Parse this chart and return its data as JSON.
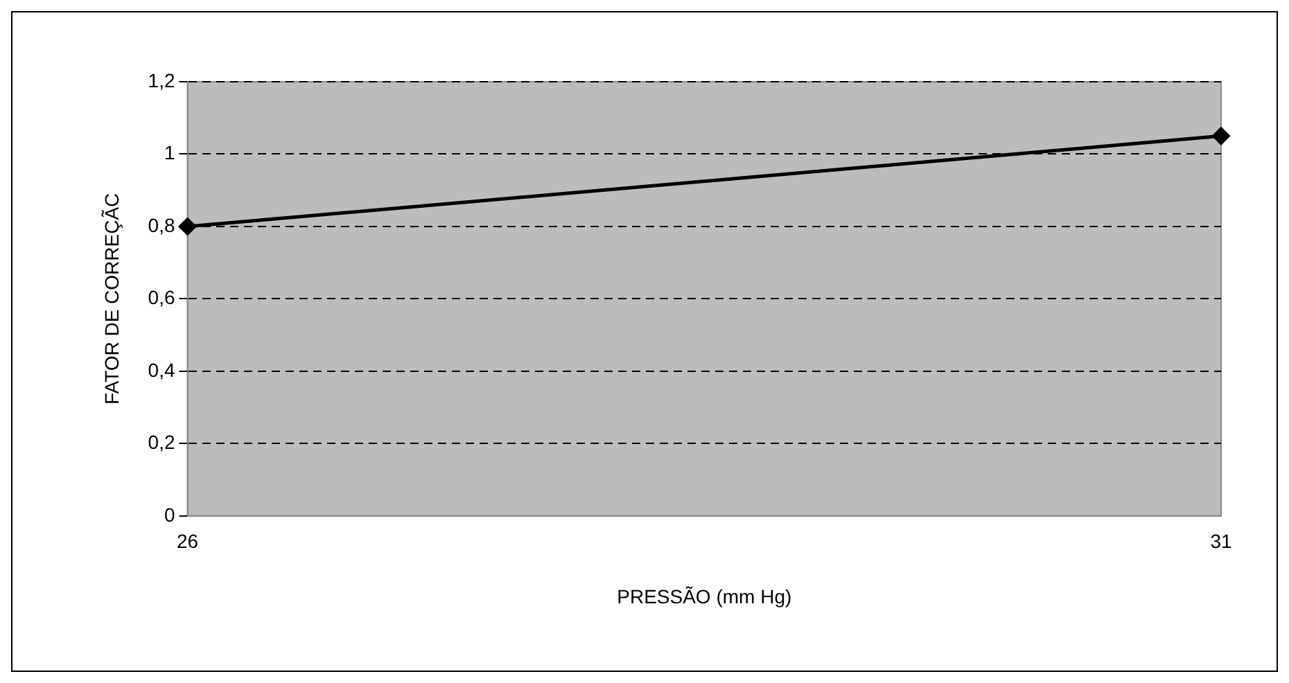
{
  "chart_data": {
    "type": "line",
    "xlabel": "PRESSÃO (mm Hg)",
    "ylabel": "FATOR DE CORREÇÃC",
    "x": [
      26,
      31
    ],
    "series": [
      {
        "color": "#000000",
        "values": [
          0.8,
          1.05
        ]
      }
    ],
    "xlim": [
      26,
      31
    ],
    "xticks": [
      26,
      31
    ],
    "ylim": [
      0,
      1.2
    ],
    "yticks": [
      {
        "value": 0,
        "label": "0"
      },
      {
        "value": 0.2,
        "label": "0,2"
      },
      {
        "value": 0.4,
        "label": "0,4"
      },
      {
        "value": 0.6,
        "label": "0,6"
      },
      {
        "value": 0.8,
        "label": "0,8"
      },
      {
        "value": 1,
        "label": "1"
      },
      {
        "value": 1.2,
        "label": "1,2"
      }
    ],
    "grid": "y",
    "legend": false,
    "marker": "diamond",
    "line_style": "solid"
  }
}
